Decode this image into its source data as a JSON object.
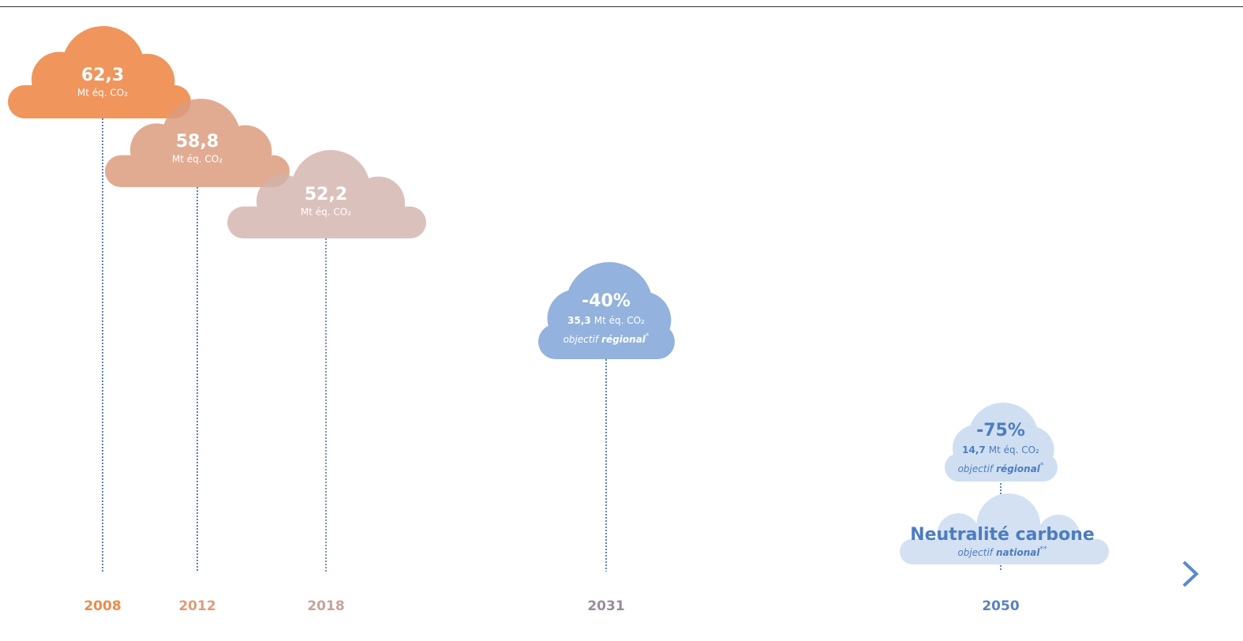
{
  "timeline": {
    "years": [
      "2008",
      "2012",
      "2018",
      "2031",
      "2050"
    ]
  },
  "clouds": [
    {
      "value": "62,3",
      "unit": "Mt éq. CO₂"
    },
    {
      "value": "58,8",
      "unit": "Mt éq. CO₂"
    },
    {
      "value": "52,2",
      "unit": "Mt éq. CO₂"
    },
    {
      "headline": "-40%",
      "value": "35,3",
      "unit": "Mt éq. CO₂",
      "objective": {
        "label": "objectif",
        "scope": "régional",
        "note": "*"
      }
    },
    {
      "headline": "-75%",
      "value": "14,7",
      "unit": "Mt éq. CO₂",
      "objective": {
        "label": "objectif",
        "scope": "régional",
        "note": "*"
      }
    },
    {
      "headline": "Neutralité carbone",
      "objective": {
        "label": "objectif",
        "scope": "national",
        "note": "**"
      }
    }
  ]
}
